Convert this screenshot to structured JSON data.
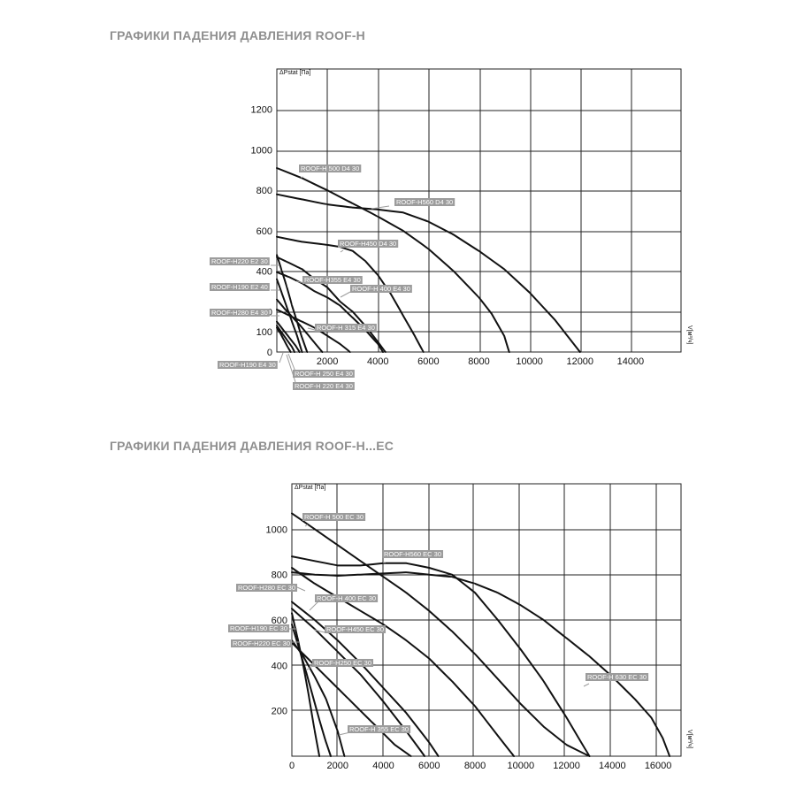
{
  "titles": {
    "chart1": "ГРАФИКИ ПАДЕНИЯ ДАВЛЕНИЯ ROOF-H",
    "chart2": "ГРАФИКИ ПАДЕНИЯ ДАВЛЕНИЯ ROOF-H...EC"
  },
  "chart_data": [
    {
      "type": "line",
      "title": "ГРАФИКИ ПАДЕНИЯ ДАВЛЕНИЯ ROOF-H",
      "ylabel": "ΔPstat [Па]",
      "xlabel": "V[м³/ч]",
      "xlim": [
        0,
        16000
      ],
      "ylim": [
        0,
        1400
      ],
      "xticks": [
        "2000",
        "4000",
        "6000",
        "8000",
        "10000",
        "12000",
        "14000"
      ],
      "yticks": [
        "0",
        "100",
        "200",
        "400",
        "600",
        "800",
        "1000",
        "1200"
      ],
      "grid": true,
      "series": [
        {
          "name": "ROOF-H 500 D4 30",
          "x": [
            0,
            1000,
            2000,
            3000,
            4000,
            5000,
            6000,
            7000,
            8000,
            8500,
            9000,
            9200
          ],
          "y": [
            910,
            860,
            800,
            735,
            670,
            600,
            510,
            400,
            270,
            190,
            80,
            0
          ]
        },
        {
          "name": "ROOF-H560 D4 30",
          "x": [
            0,
            1000,
            2000,
            3000,
            4000,
            5000,
            6000,
            7000,
            8000,
            9000,
            10000,
            11000,
            12000
          ],
          "y": [
            780,
            755,
            730,
            715,
            705,
            690,
            645,
            580,
            500,
            410,
            295,
            160,
            0
          ]
        },
        {
          "name": "ROOF-H450 D4 30",
          "x": [
            0,
            1000,
            2000,
            2500,
            3000,
            3500,
            4000,
            4500,
            5000,
            5500,
            5800
          ],
          "y": [
            570,
            545,
            530,
            520,
            500,
            450,
            380,
            290,
            180,
            70,
            0
          ]
        },
        {
          "name": "ROOF-H220 E2 30",
          "x": [
            0,
            200,
            400,
            600,
            800,
            1000,
            1200
          ],
          "y": [
            480,
            400,
            320,
            230,
            150,
            70,
            0
          ]
        },
        {
          "name": "ROOF-H355 E4 30",
          "x": [
            0,
            500,
            1000,
            1500,
            2000,
            2500,
            3000,
            3500,
            4000,
            4300
          ],
          "y": [
            470,
            440,
            410,
            360,
            320,
            250,
            200,
            130,
            50,
            0
          ]
        },
        {
          "name": "ROOF-H 400 E4 30",
          "x": [
            0,
            500,
            1000,
            1500,
            2000,
            2500,
            3000,
            3500,
            4000,
            4200
          ],
          "y": [
            395,
            370,
            340,
            300,
            270,
            230,
            170,
            110,
            40,
            0
          ]
        },
        {
          "name": "ROOF-H190 E2 40",
          "x": [
            0,
            200,
            400,
            600,
            800,
            1000
          ],
          "y": [
            360,
            290,
            220,
            150,
            80,
            0
          ]
        },
        {
          "name": "ROOF-H280 E4 30",
          "x": [
            0,
            300,
            600,
            900,
            1200,
            1500,
            1800
          ],
          "y": [
            260,
            215,
            175,
            135,
            90,
            45,
            0
          ]
        },
        {
          "name": "ROOF-H 315 E4 30",
          "x": [
            0,
            500,
            1000,
            1500,
            2000,
            2500,
            2900
          ],
          "y": [
            210,
            180,
            150,
            120,
            80,
            40,
            0
          ]
        },
        {
          "name": "ROOF-H190 E4 30",
          "x": [
            0,
            150,
            300,
            450,
            550
          ],
          "y": [
            120,
            90,
            55,
            20,
            0
          ]
        },
        {
          "name": "ROOF-H 250 E4 30",
          "x": [
            0,
            250,
            500,
            750,
            900
          ],
          "y": [
            150,
            110,
            70,
            30,
            0
          ]
        },
        {
          "name": "ROOF-H 220 E4 30",
          "x": [
            0,
            200,
            400,
            600,
            700
          ],
          "y": [
            130,
            95,
            60,
            25,
            0
          ]
        }
      ]
    },
    {
      "type": "line",
      "title": "ГРАФИКИ ПАДЕНИЯ ДАВЛЕНИЯ ROOF-H...EC",
      "ylabel": "ΔPstat [Па]",
      "xlabel": "V[м³/ч]",
      "xlim": [
        0,
        17000
      ],
      "ylim": [
        0,
        1200
      ],
      "xticks": [
        "0",
        "2000",
        "4000",
        "6000",
        "8000",
        "10000",
        "12000",
        "14000",
        "16000"
      ],
      "yticks": [
        "200",
        "400",
        "600",
        "800",
        "1000"
      ],
      "grid": true,
      "series": [
        {
          "name": "ROOF-H 500 EC 30",
          "x": [
            0,
            1000,
            2000,
            3000,
            4000,
            5000,
            6000,
            7000,
            8000,
            9000,
            10000,
            11000,
            12000,
            13000
          ],
          "y": [
            1070,
            1000,
            930,
            860,
            790,
            720,
            640,
            550,
            450,
            340,
            230,
            130,
            50,
            0
          ]
        },
        {
          "name": "ROOF-H560 EC 30",
          "x": [
            0,
            1000,
            2000,
            3000,
            4000,
            5000,
            6000,
            7000,
            8000,
            9000,
            10000,
            11000,
            12000,
            13000
          ],
          "y": [
            880,
            860,
            840,
            840,
            850,
            850,
            830,
            800,
            720,
            600,
            470,
            330,
            170,
            0
          ]
        },
        {
          "name": "ROOF-H 630 EC 30",
          "x": [
            0,
            1000,
            2000,
            3000,
            4000,
            5000,
            6000,
            7000,
            8000,
            9000,
            10000,
            11000,
            12000,
            13000,
            14000,
            15000,
            15700,
            16200,
            16500
          ],
          "y": [
            810,
            800,
            795,
            800,
            805,
            810,
            800,
            790,
            760,
            720,
            665,
            600,
            520,
            440,
            350,
            250,
            170,
            80,
            0
          ]
        },
        {
          "name": "ROOF-H280 EC 30",
          "x": [
            0,
            1000,
            2000,
            3000,
            4000,
            5000,
            6000,
            7000,
            8000,
            9000,
            9700
          ],
          "y": [
            830,
            760,
            700,
            640,
            580,
            510,
            430,
            330,
            220,
            90,
            0
          ]
        },
        {
          "name": "ROOF-H 400 EC 30",
          "x": [
            0,
            1000,
            2000,
            3000,
            4000,
            5000,
            6000,
            6400
          ],
          "y": [
            680,
            600,
            510,
            410,
            300,
            190,
            60,
            0
          ]
        },
        {
          "name": "ROOF-H450 EC 30",
          "x": [
            0,
            1000,
            2000,
            3000,
            4000,
            5000,
            5800
          ],
          "y": [
            650,
            560,
            460,
            360,
            240,
            110,
            0
          ]
        },
        {
          "name": "ROOF-H190 EC 30",
          "x": [
            0,
            250,
            500,
            750,
            1000,
            1200
          ],
          "y": [
            630,
            520,
            400,
            260,
            110,
            0
          ]
        },
        {
          "name": "ROOF-H220 EC 30",
          "x": [
            0,
            300,
            600,
            900,
            1200,
            1500,
            1700
          ],
          "y": [
            580,
            480,
            380,
            270,
            160,
            60,
            0
          ]
        },
        {
          "name": "ROOF-H250 EC 30",
          "x": [
            0,
            500,
            1000,
            1500,
            2000,
            2300
          ],
          "y": [
            510,
            440,
            350,
            250,
            110,
            0
          ]
        },
        {
          "name": "ROOF-H 355 EC 30",
          "x": [
            0,
            500,
            1000,
            1500,
            2000,
            2500,
            3000,
            3500,
            4000,
            4500,
            5200
          ],
          "y": [
            500,
            450,
            400,
            350,
            300,
            250,
            200,
            150,
            100,
            50,
            0
          ]
        }
      ]
    }
  ]
}
